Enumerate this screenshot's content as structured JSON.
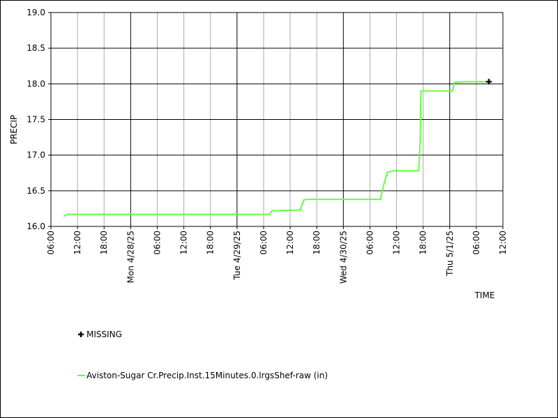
{
  "chart_data": {
    "type": "line",
    "y_label": "PRECIP",
    "x_label": "TIME",
    "x": [
      "2025-04-27T08:50",
      "2025-04-27T09:45",
      "2025-04-29T07:20",
      "2025-04-29T07:55",
      "2025-04-29T14:15",
      "2025-04-29T15:00",
      "2025-04-29T15:45",
      "2025-04-30T08:20",
      "2025-04-30T09:10",
      "2025-04-30T09:55",
      "2025-04-30T11:30",
      "2025-04-30T17:00",
      "2025-04-30T17:20",
      "2025-04-30T17:30",
      "2025-05-01T00:35",
      "2025-05-01T01:05",
      "2025-05-01T03:15",
      "2025-05-01T08:45"
    ],
    "series": [
      {
        "name": "Aviston-Sugar Cr.Precip.Inst.15Minutes.0.lrgsShef-raw (in)",
        "color": "#66ff44",
        "values": [
          16.14,
          16.17,
          16.17,
          16.22,
          16.23,
          16.37,
          16.38,
          16.38,
          16.6,
          16.76,
          16.78,
          16.78,
          17.2,
          17.9,
          17.9,
          18.02,
          18.03,
          18.03
        ]
      },
      {
        "name": "MISSING",
        "color": "#000000",
        "marker": "+",
        "x": [
          "2025-05-01T08:50"
        ],
        "values": [
          18.03
        ]
      }
    ],
    "xlim": [
      "2025-04-27T06:00",
      "2025-05-01T12:00"
    ],
    "xticks": [
      {
        "value": "2025-04-27T06:00",
        "label": "06:00"
      },
      {
        "value": "2025-04-27T12:00",
        "label": "12:00"
      },
      {
        "value": "2025-04-27T18:00",
        "label": "18:00"
      },
      {
        "value": "2025-04-28T00:00",
        "label": "Mon 4/28/25"
      },
      {
        "value": "2025-04-28T06:00",
        "label": "06:00"
      },
      {
        "value": "2025-04-28T12:00",
        "label": "12:00"
      },
      {
        "value": "2025-04-28T18:00",
        "label": "18:00"
      },
      {
        "value": "2025-04-29T00:00",
        "label": "Tue 4/29/25"
      },
      {
        "value": "2025-04-29T06:00",
        "label": "06:00"
      },
      {
        "value": "2025-04-29T12:00",
        "label": "12:00"
      },
      {
        "value": "2025-04-29T18:00",
        "label": "18:00"
      },
      {
        "value": "2025-04-30T00:00",
        "label": "Wed 4/30/25"
      },
      {
        "value": "2025-04-30T06:00",
        "label": "06:00"
      },
      {
        "value": "2025-04-30T12:00",
        "label": "12:00"
      },
      {
        "value": "2025-04-30T18:00",
        "label": "18:00"
      },
      {
        "value": "2025-05-01T00:00",
        "label": "Thu 5/1/25"
      },
      {
        "value": "2025-05-01T06:00",
        "label": "06:00"
      },
      {
        "value": "2025-05-01T12:00",
        "label": "12:00"
      }
    ],
    "ylim": [
      16,
      19
    ],
    "yticks": [
      {
        "value": 16,
        "label": "16.0"
      },
      {
        "value": 16.5,
        "label": "16.5"
      },
      {
        "value": 17,
        "label": "17.0"
      },
      {
        "value": 17.5,
        "label": "17.5"
      },
      {
        "value": 18,
        "label": "18.0"
      },
      {
        "value": 18.5,
        "label": "18.5"
      },
      {
        "value": 19,
        "label": "19.0"
      }
    ],
    "grid": true
  }
}
